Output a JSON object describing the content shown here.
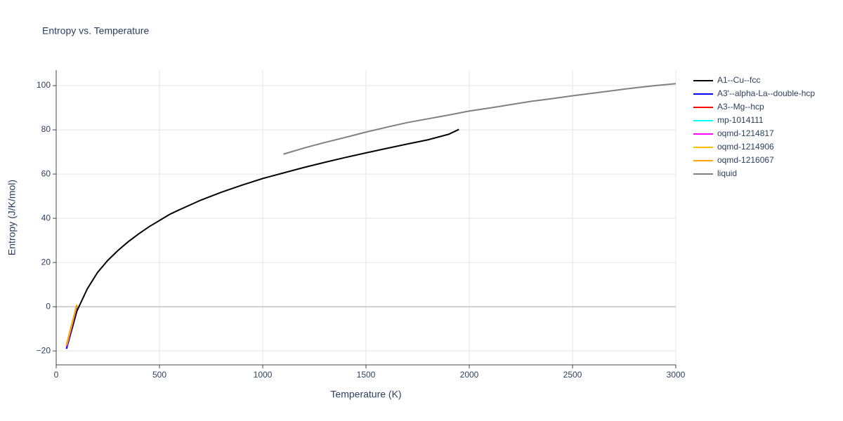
{
  "chart_data": {
    "type": "line",
    "title": "Entropy vs. Temperature",
    "x_label": "Temperature (K)",
    "y_label": "Entropy (J/K/mol)",
    "xlim": [
      0,
      3000
    ],
    "ylim": [
      -26.3,
      107
    ],
    "xticks": [
      0,
      500,
      1000,
      1500,
      2000,
      2500,
      3000
    ],
    "yticks": [
      {
        "value": -20,
        "label": "−20"
      },
      0,
      20,
      40,
      60,
      80,
      100
    ],
    "grid": true,
    "legend": "right",
    "series": [
      {
        "name": "A1--Cu--fcc",
        "color": "#000000",
        "x": [
          50,
          100,
          150,
          200,
          250,
          300,
          350,
          400,
          450,
          500,
          550,
          600,
          700,
          800,
          900,
          1000,
          1100,
          1200,
          1300,
          1400,
          1500,
          1600,
          1700,
          1800,
          1900,
          1950
        ],
        "values": [
          -19,
          -2,
          8,
          15.5,
          21,
          25.5,
          29.5,
          33,
          36.2,
          39,
          41.8,
          44,
          48.2,
          51.8,
          55,
          58,
          60.5,
          63,
          65.3,
          67.5,
          69.6,
          71.6,
          73.6,
          75.5,
          78,
          80.2
        ]
      },
      {
        "name": "A3'--alpha-La--double-hcp",
        "color": "#0000ff",
        "x": [
          50,
          100
        ],
        "values": [
          -19,
          0
        ]
      },
      {
        "name": "A3--Mg--hcp",
        "color": "#ff0000",
        "x": [
          50,
          100
        ],
        "values": [
          -18,
          0.5
        ]
      },
      {
        "name": "mp-1014111",
        "color": "#00ffff",
        "x": [
          50,
          100
        ],
        "values": [
          -18,
          0.5
        ]
      },
      {
        "name": "oqmd-1214817",
        "color": "#ff00ff",
        "x": [
          50,
          100
        ],
        "values": [
          -18,
          0.5
        ]
      },
      {
        "name": "oqmd-1214906",
        "color": "#ffbf00",
        "x": [
          50,
          100
        ],
        "values": [
          -17.5,
          0.8
        ]
      },
      {
        "name": "oqmd-1216067",
        "color": "#ffa500",
        "x": [
          50,
          100
        ],
        "values": [
          -17,
          1
        ]
      },
      {
        "name": "liquid",
        "color": "#808080",
        "x": [
          1100,
          1200,
          1300,
          1400,
          1500,
          1600,
          1700,
          1800,
          1900,
          2000,
          2100,
          2200,
          2300,
          2400,
          2500,
          2600,
          2700,
          2800,
          2900,
          3000
        ],
        "values": [
          69,
          71.8,
          74.3,
          76.6,
          79,
          81.2,
          83.3,
          85,
          86.7,
          88.5,
          89.9,
          91.4,
          92.9,
          94.1,
          95.4,
          96.6,
          97.8,
          99,
          100,
          100.9
        ]
      }
    ]
  }
}
